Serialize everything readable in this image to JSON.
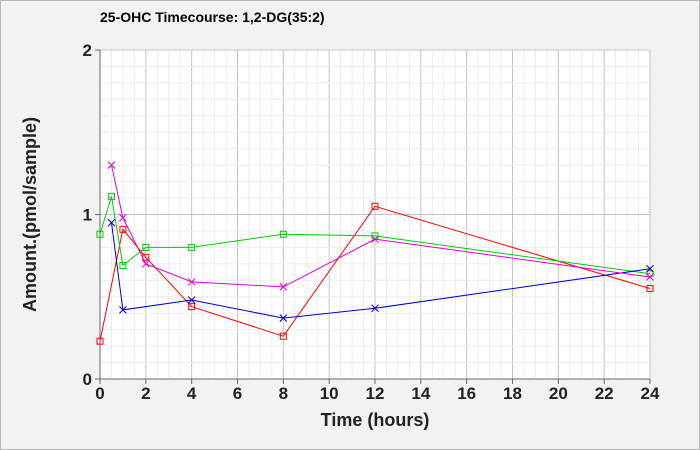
{
  "chart_data": {
    "type": "line",
    "title": "25-OHC Timecourse: 1,2-DG(35:2)",
    "xlabel": "Time (hours)",
    "ylabel": "Amount.(pmol/sample)",
    "xlim": [
      0,
      24
    ],
    "ylim": [
      0,
      2
    ],
    "x_ticks": [
      0,
      2,
      4,
      6,
      8,
      10,
      12,
      14,
      16,
      18,
      20,
      22,
      24
    ],
    "y_ticks": [
      0,
      1,
      2
    ],
    "grid": true,
    "legend": "none",
    "series": [
      {
        "color": "#ff0000",
        "marker": "square",
        "points": [
          [
            0,
            0.23
          ],
          [
            1,
            0.91
          ],
          [
            2,
            0.74
          ],
          [
            4,
            0.44
          ],
          [
            8,
            0.26
          ],
          [
            12,
            1.05
          ],
          [
            24,
            0.55
          ]
        ]
      },
      {
        "color": "#00cc00",
        "marker": "square",
        "points": [
          [
            0,
            0.88
          ],
          [
            0.5,
            1.11
          ],
          [
            1,
            0.69
          ],
          [
            2,
            0.8
          ],
          [
            4,
            0.8
          ],
          [
            8,
            0.88
          ],
          [
            12,
            0.87
          ],
          [
            24,
            0.64
          ]
        ]
      },
      {
        "color": "#0000cc",
        "marker": "x",
        "points": [
          [
            0.5,
            0.95
          ],
          [
            1,
            0.42
          ],
          [
            4,
            0.48
          ],
          [
            8,
            0.37
          ],
          [
            12,
            0.43
          ],
          [
            24,
            0.67
          ]
        ]
      },
      {
        "color": "#dd00dd",
        "marker": "x",
        "points": [
          [
            0.5,
            1.3
          ],
          [
            1,
            0.98
          ],
          [
            2,
            0.7
          ],
          [
            4,
            0.59
          ],
          [
            8,
            0.56
          ],
          [
            12,
            0.85
          ],
          [
            24,
            0.62
          ]
        ]
      }
    ]
  }
}
